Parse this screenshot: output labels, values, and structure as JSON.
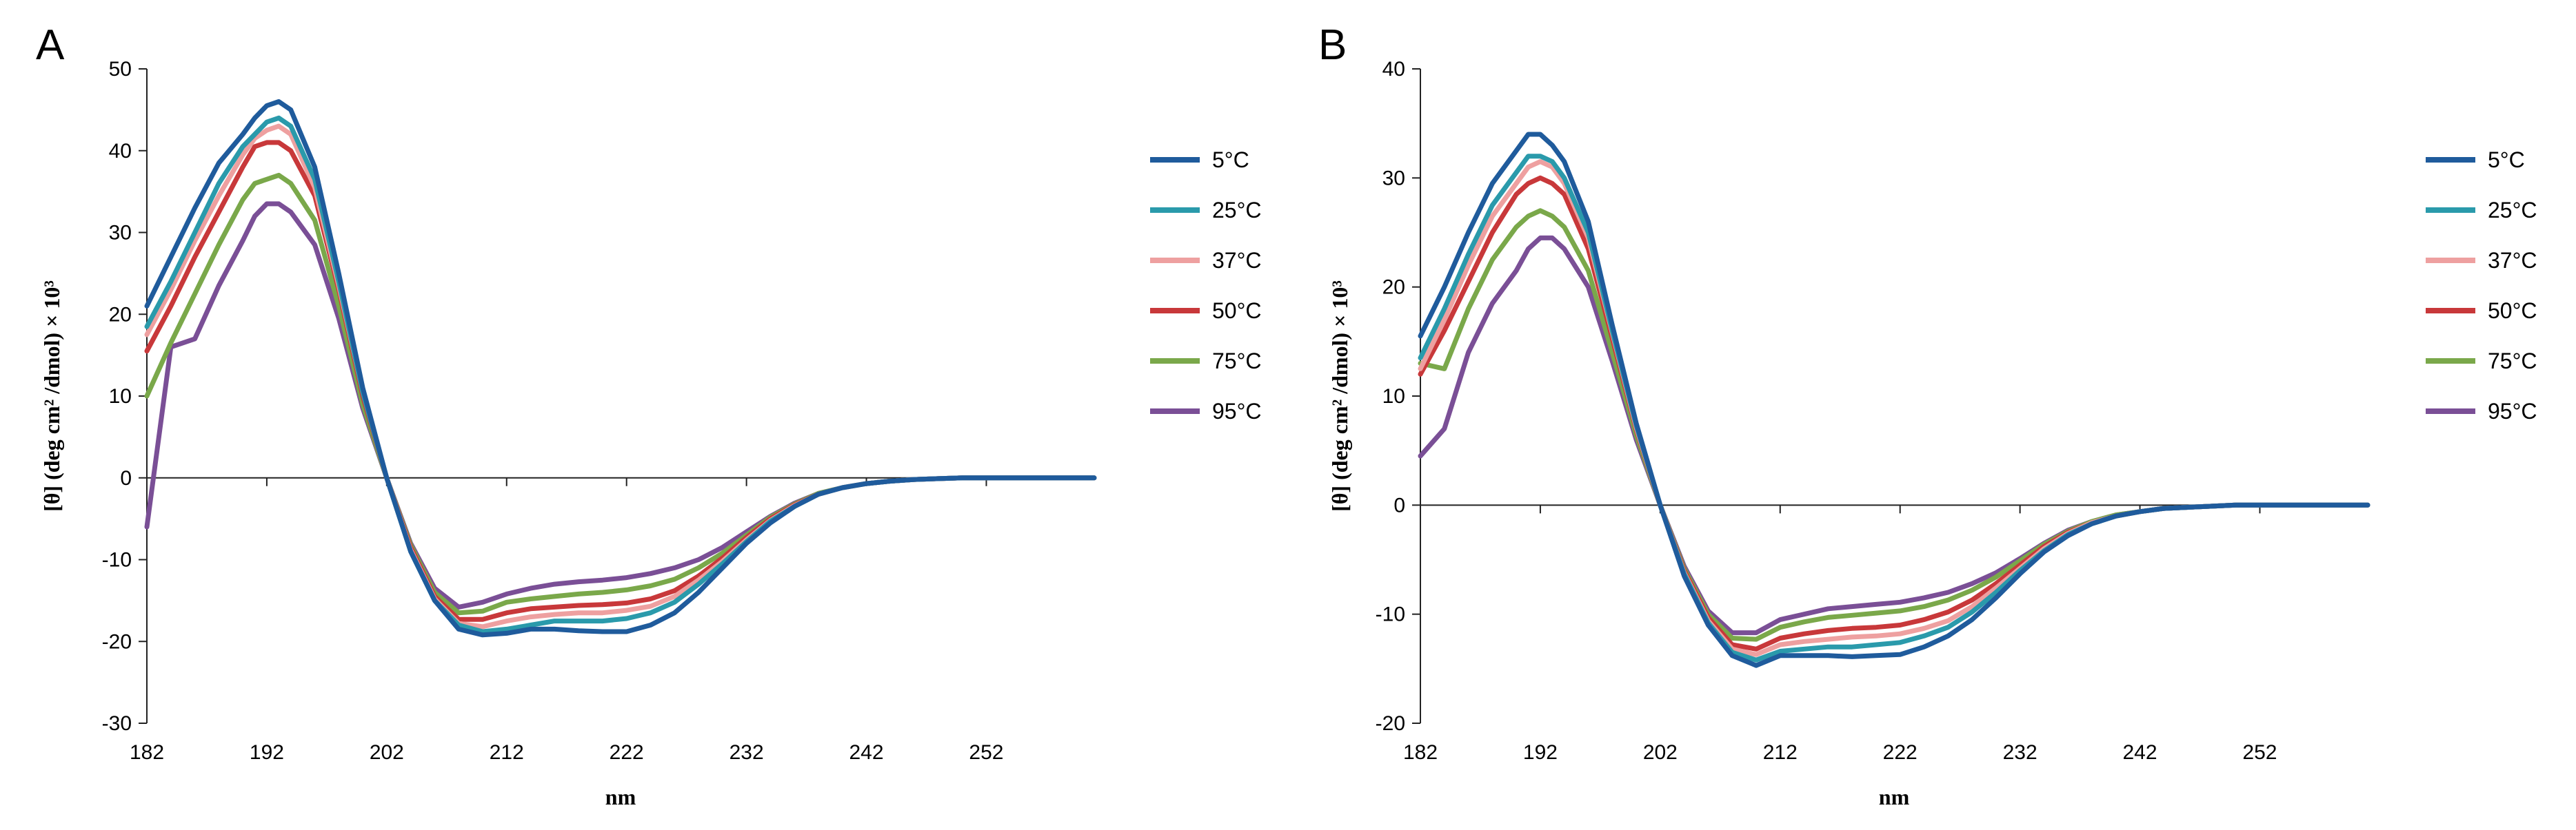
{
  "series_colors": {
    "5°C": "#1f5b9c",
    "25°C": "#2a9aab",
    "37°C": "#eea0a0",
    "50°C": "#c8383a",
    "75°C": "#7aa84a",
    "95°C": "#7a4f96"
  },
  "chart_data": [
    {
      "panel_label": "A",
      "type": "line",
      "xlabel": "nm",
      "ylabel": "[θ] (deg cm² /dmol) × 10³",
      "xlim": [
        182,
        261
      ],
      "ylim": [
        -30,
        50
      ],
      "xticks": [
        182,
        192,
        202,
        212,
        222,
        232,
        242,
        252
      ],
      "yticks": [
        -30,
        -20,
        -10,
        0,
        10,
        20,
        30,
        40,
        50
      ],
      "grid": false,
      "legend_position": "right",
      "x": [
        182,
        184,
        186,
        188,
        190,
        191,
        192,
        193,
        194,
        196,
        198,
        200,
        202,
        204,
        206,
        208,
        210,
        212,
        214,
        216,
        218,
        220,
        222,
        224,
        226,
        228,
        230,
        232,
        234,
        236,
        238,
        240,
        242,
        244,
        246,
        248,
        250,
        252,
        254,
        256,
        258,
        261
      ],
      "series": [
        {
          "name": "5°C",
          "values": [
            21,
            27,
            33,
            38.5,
            42,
            44,
            45.5,
            46,
            45,
            38,
            25,
            11,
            0,
            -9,
            -15,
            -18.5,
            -19.2,
            -19,
            -18.5,
            -18.5,
            -18.7,
            -18.8,
            -18.8,
            -18,
            -16.5,
            -14,
            -11,
            -8,
            -5.5,
            -3.5,
            -2,
            -1.2,
            -0.7,
            -0.4,
            -0.2,
            -0.1,
            0,
            0,
            0,
            0,
            0,
            0
          ]
        },
        {
          "name": "25°C",
          "values": [
            18.5,
            24,
            30,
            36,
            40.5,
            42,
            43.5,
            44,
            43,
            36.5,
            24,
            10.5,
            0,
            -9,
            -15,
            -18,
            -18.8,
            -18.5,
            -18,
            -17.5,
            -17.5,
            -17.5,
            -17.2,
            -16.5,
            -15.2,
            -13,
            -10.5,
            -7.8,
            -5.3,
            -3.5,
            -2,
            -1.2,
            -0.7,
            -0.4,
            -0.2,
            -0.1,
            0,
            0,
            0,
            0,
            0,
            0
          ]
        },
        {
          "name": "37°C",
          "values": [
            17.5,
            23,
            29,
            34.5,
            39.5,
            41.5,
            42.5,
            43,
            42,
            35.5,
            23.5,
            10.5,
            0,
            -8.8,
            -14.8,
            -17.8,
            -18.2,
            -17.5,
            -17,
            -16.7,
            -16.5,
            -16.5,
            -16.2,
            -15.7,
            -14.5,
            -12.5,
            -10.2,
            -7.6,
            -5.2,
            -3.4,
            -2,
            -1.2,
            -0.7,
            -0.4,
            -0.2,
            -0.1,
            0,
            0,
            0,
            0,
            0,
            0
          ]
        },
        {
          "name": "50°C",
          "values": [
            15.5,
            21,
            27,
            32.5,
            38,
            40.5,
            41,
            41,
            40,
            34.5,
            23,
            10,
            0,
            -8.5,
            -14.5,
            -17.3,
            -17.3,
            -16.5,
            -16,
            -15.8,
            -15.6,
            -15.5,
            -15.3,
            -14.8,
            -13.8,
            -12,
            -9.8,
            -7.3,
            -5,
            -3.3,
            -2,
            -1.2,
            -0.7,
            -0.4,
            -0.2,
            -0.1,
            0,
            0,
            0,
            0,
            0,
            0
          ]
        },
        {
          "name": "75°C",
          "values": [
            10,
            16.5,
            22.5,
            28.5,
            34,
            36,
            36.5,
            37,
            36,
            31.5,
            21,
            9,
            0,
            -8.2,
            -14,
            -16.5,
            -16.3,
            -15.2,
            -14.8,
            -14.5,
            -14.2,
            -14,
            -13.7,
            -13.2,
            -12.4,
            -11,
            -9.2,
            -7,
            -4.8,
            -3.2,
            -1.9,
            -1.2,
            -0.7,
            -0.4,
            -0.2,
            -0.1,
            0,
            0,
            0,
            0,
            0,
            0
          ]
        },
        {
          "name": "95°C",
          "values": [
            -6,
            16,
            17,
            23.5,
            29,
            32,
            33.5,
            33.5,
            32.5,
            28.5,
            19.5,
            8.5,
            0,
            -8,
            -13.5,
            -15.8,
            -15.2,
            -14.2,
            -13.5,
            -13,
            -12.7,
            -12.5,
            -12.2,
            -11.7,
            -11,
            -10,
            -8.5,
            -6.6,
            -4.7,
            -3.1,
            -1.9,
            -1.2,
            -0.7,
            -0.4,
            -0.2,
            -0.1,
            0,
            0,
            0,
            0,
            0,
            0
          ]
        }
      ]
    },
    {
      "panel_label": "B",
      "type": "line",
      "xlabel": "nm",
      "ylabel": "[θ] (deg cm² /dmol) × 10³",
      "xlim": [
        182,
        261
      ],
      "ylim": [
        -20,
        40
      ],
      "xticks": [
        182,
        192,
        202,
        212,
        222,
        232,
        242,
        252
      ],
      "yticks": [
        -20,
        -10,
        0,
        10,
        20,
        30,
        40
      ],
      "grid": false,
      "legend_position": "right",
      "x": [
        182,
        184,
        186,
        188,
        190,
        191,
        192,
        193,
        194,
        196,
        198,
        200,
        202,
        204,
        206,
        208,
        210,
        212,
        214,
        216,
        218,
        220,
        222,
        224,
        226,
        228,
        230,
        232,
        234,
        236,
        238,
        240,
        242,
        244,
        246,
        248,
        250,
        252,
        254,
        256,
        258,
        261
      ],
      "series": [
        {
          "name": "5°C",
          "values": [
            15.5,
            20,
            25,
            29.5,
            32.5,
            34,
            34,
            33,
            31.5,
            26,
            16.5,
            7.5,
            0,
            -6.5,
            -11,
            -13.8,
            -14.7,
            -13.8,
            -13.8,
            -13.8,
            -13.9,
            -13.8,
            -13.7,
            -13,
            -12,
            -10.5,
            -8.5,
            -6.3,
            -4.3,
            -2.8,
            -1.7,
            -1,
            -0.6,
            -0.3,
            -0.2,
            -0.1,
            0,
            0,
            0,
            0,
            0,
            0
          ]
        },
        {
          "name": "25°C",
          "values": [
            13.5,
            18,
            23,
            27.5,
            30.5,
            32,
            32,
            31.5,
            30,
            25,
            16,
            7.3,
            0,
            -6.3,
            -10.8,
            -13.5,
            -14.2,
            -13.4,
            -13.2,
            -13,
            -13,
            -12.8,
            -12.6,
            -12,
            -11.2,
            -9.8,
            -8,
            -6,
            -4.2,
            -2.7,
            -1.7,
            -1,
            -0.6,
            -0.3,
            -0.2,
            -0.1,
            0,
            0,
            0,
            0,
            0,
            0
          ]
        },
        {
          "name": "37°C",
          "values": [
            12.5,
            17,
            22,
            26.5,
            29.5,
            31,
            31.5,
            31,
            29.5,
            24.5,
            15.8,
            7.1,
            0,
            -6.2,
            -10.6,
            -13.2,
            -13.7,
            -12.8,
            -12.5,
            -12.3,
            -12.1,
            -12,
            -11.8,
            -11.3,
            -10.6,
            -9.3,
            -7.6,
            -5.8,
            -4,
            -2.6,
            -1.6,
            -1,
            -0.6,
            -0.3,
            -0.2,
            -0.1,
            0,
            0,
            0,
            0,
            0,
            0
          ]
        },
        {
          "name": "50°C",
          "values": [
            12,
            16,
            20.5,
            25,
            28.5,
            29.5,
            30,
            29.5,
            28.5,
            23.5,
            15.3,
            6.9,
            0,
            -6,
            -10.3,
            -12.8,
            -13.2,
            -12.2,
            -11.8,
            -11.5,
            -11.3,
            -11.2,
            -11,
            -10.5,
            -9.8,
            -8.7,
            -7.2,
            -5.5,
            -3.8,
            -2.5,
            -1.6,
            -1,
            -0.6,
            -0.3,
            -0.2,
            -0.1,
            0,
            0,
            0,
            0,
            0,
            0
          ]
        },
        {
          "name": "75°C",
          "values": [
            13,
            12.5,
            18,
            22.5,
            25.5,
            26.5,
            27,
            26.5,
            25.5,
            21.5,
            14,
            6.4,
            0,
            -5.8,
            -10,
            -12.2,
            -12.3,
            -11.2,
            -10.7,
            -10.3,
            -10.1,
            -9.9,
            -9.7,
            -9.3,
            -8.7,
            -7.8,
            -6.6,
            -5.1,
            -3.6,
            -2.4,
            -1.5,
            -0.9,
            -0.6,
            -0.3,
            -0.2,
            -0.1,
            0,
            0,
            0,
            0,
            0,
            0
          ]
        },
        {
          "name": "95°C",
          "values": [
            4.5,
            7,
            14,
            18.5,
            21.5,
            23.5,
            24.5,
            24.5,
            23.5,
            20,
            13.2,
            6,
            0,
            -5.6,
            -9.7,
            -11.7,
            -11.7,
            -10.5,
            -10,
            -9.5,
            -9.3,
            -9.1,
            -8.9,
            -8.5,
            -8,
            -7.2,
            -6.2,
            -4.9,
            -3.5,
            -2.3,
            -1.5,
            -0.9,
            -0.6,
            -0.3,
            -0.2,
            -0.1,
            0,
            0,
            0,
            0,
            0,
            0
          ]
        }
      ]
    }
  ]
}
